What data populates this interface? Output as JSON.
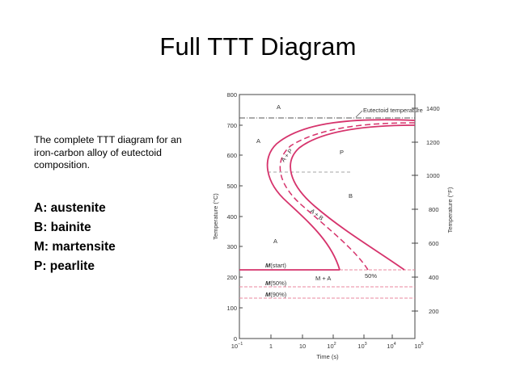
{
  "slide": {
    "title": "Full TTT Diagram"
  },
  "description": "The complete TTT diagram for an iron-carbon alloy of eutectoid composition.",
  "legend": [
    {
      "text": "A: austenite"
    },
    {
      "text": "B: bainite"
    },
    {
      "text": "M: martensite"
    },
    {
      "text": "P: pearlite"
    }
  ],
  "diagram": {
    "ylabel_left": "Temperature (°C)",
    "ylabel_right": "Temperature (°F)",
    "xlabel": "Time (s)",
    "left_ticks": [
      "800",
      "700",
      "600",
      "500",
      "400",
      "300",
      "200",
      "100",
      "0"
    ],
    "right_ticks": [
      "1400",
      "1200",
      "1000",
      "800",
      "600",
      "400",
      "200"
    ],
    "x_ticks": [
      {
        "base": "10",
        "exp": "−1"
      },
      {
        "base": "1",
        "exp": ""
      },
      {
        "base": "10",
        "exp": ""
      },
      {
        "base": "10",
        "exp": "2"
      },
      {
        "base": "10",
        "exp": "3"
      },
      {
        "base": "10",
        "exp": "4"
      },
      {
        "base": "10",
        "exp": "5"
      }
    ],
    "eutectoid_label": "Eutectoid temperature",
    "regions": {
      "a_top": "A",
      "a_left": "A",
      "a_lower": "A",
      "p": "P",
      "b": "B",
      "ap": "A + P",
      "ab": "A + B",
      "ma": "M + A",
      "fifty": "50%"
    },
    "m_lines": [
      {
        "m": "M",
        "rest": "(start)"
      },
      {
        "m": "M",
        "rest": "(50%)"
      },
      {
        "m": "M",
        "rest": "(90%)"
      }
    ],
    "colors": {
      "curve": "#d6336c",
      "mline": "#e8879f",
      "eutectoid": "#555555",
      "axis": "#444444"
    }
  }
}
